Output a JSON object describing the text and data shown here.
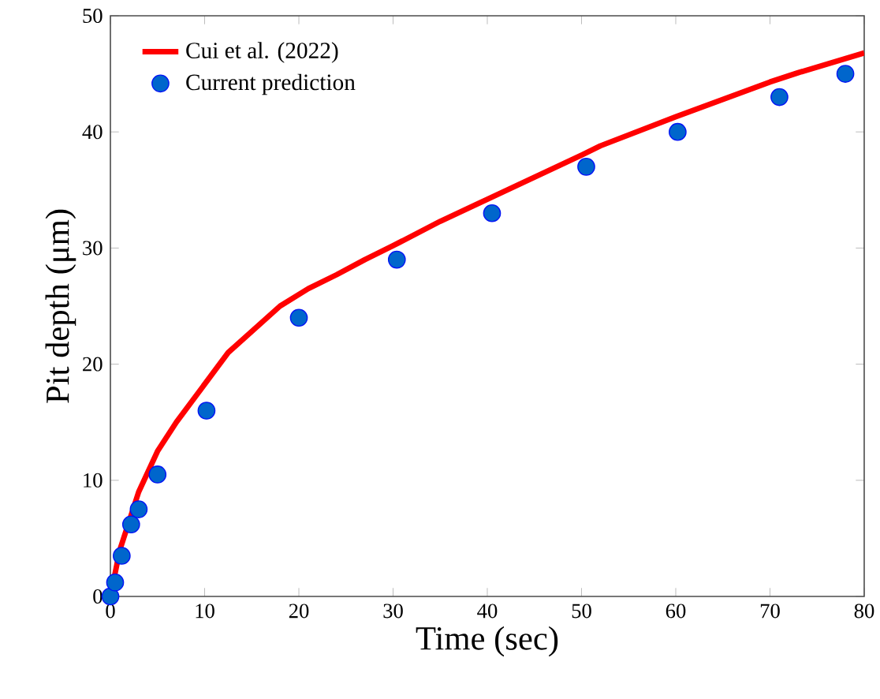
{
  "chart_data": {
    "type": "line",
    "xlabel": "Time (sec)",
    "ylabel": "Pit depth (μm)",
    "xlim": [
      0,
      80
    ],
    "ylim": [
      0,
      50
    ],
    "xticks": [
      0,
      10,
      20,
      30,
      40,
      50,
      60,
      70,
      80
    ],
    "yticks": [
      0,
      10,
      20,
      30,
      40,
      50
    ],
    "legend": "top left",
    "grid": false,
    "series": [
      {
        "name": "Cui et al. (2022)",
        "color": "#ff0000",
        "line_style": "solid",
        "x": [
          0,
          1,
          3,
          5,
          7,
          12.5,
          18,
          21,
          24,
          27,
          30,
          35,
          40,
          50,
          52,
          60,
          70,
          73,
          80
        ],
        "values": [
          0,
          4,
          9,
          12.5,
          15,
          21,
          25,
          26.5,
          27.7,
          29,
          30.2,
          32.3,
          34.2,
          38,
          38.8,
          41.3,
          44.3,
          45.1,
          46.8
        ]
      },
      {
        "name": "Current prediction",
        "type": "scatter",
        "marker": "circle",
        "color": "#0066cc",
        "x": [
          0,
          0.5,
          1.2,
          2.2,
          3,
          5,
          10.2,
          20,
          30.4,
          40.5,
          50.5,
          60.2,
          71,
          78
        ],
        "values": [
          0,
          1.2,
          3.5,
          6.2,
          7.5,
          10.5,
          16,
          24,
          29,
          33,
          37,
          40,
          43,
          45
        ]
      }
    ]
  }
}
